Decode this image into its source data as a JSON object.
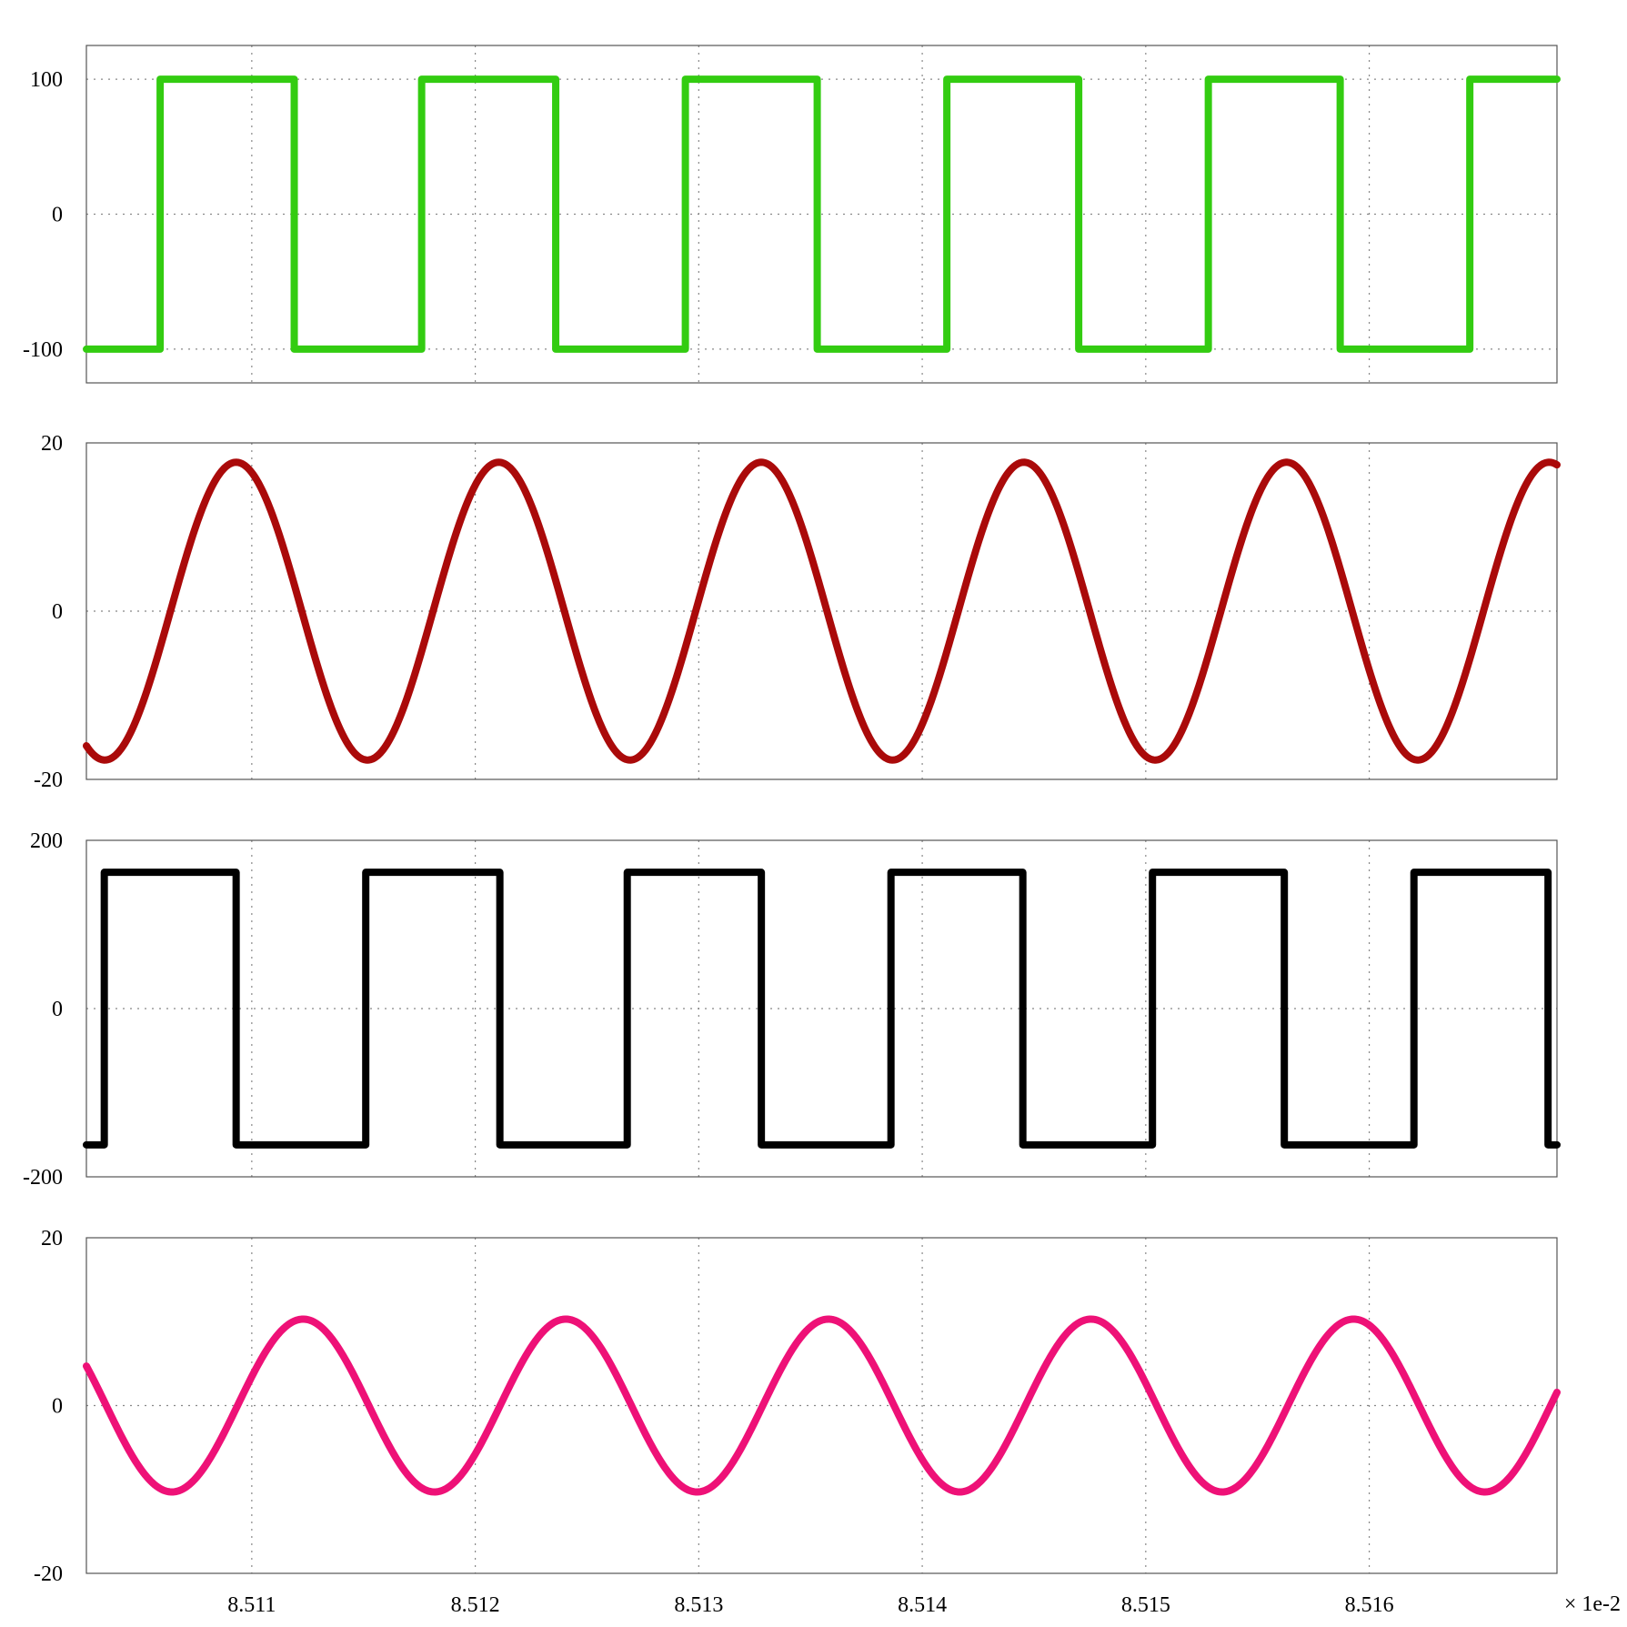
{
  "chart_data": [
    {
      "type": "line",
      "panel": 1,
      "color": "#33cc11",
      "ylim": [
        -125,
        125
      ],
      "yticks": [
        -100,
        0,
        100
      ],
      "ytick_labels": [
        "-100",
        "0",
        "100"
      ],
      "xlim": [
        8.51026,
        8.51684
      ],
      "grid": true,
      "series": [
        {
          "x": [
            8.51026,
            8.51059,
            8.51059,
            8.51119,
            8.51119,
            8.51176,
            8.51176,
            8.51236,
            8.51236,
            8.51294,
            8.51294,
            8.51353,
            8.51353,
            8.51411,
            8.51411,
            8.5147,
            8.5147,
            8.51528,
            8.51528,
            8.51587,
            8.51587,
            8.51645,
            8.51645,
            8.51684
          ],
          "y": [
            -100,
            -100,
            100,
            100,
            -100,
            -100,
            100,
            100,
            -100,
            -100,
            100,
            100,
            -100,
            -100,
            100,
            100,
            -100,
            -100,
            100,
            100,
            -100,
            -100,
            100,
            100
          ]
        }
      ]
    },
    {
      "type": "line",
      "panel": 2,
      "color": "#aa0a0a",
      "ylim": [
        -20,
        20
      ],
      "yticks": [
        -20,
        0,
        20
      ],
      "ytick_labels": [
        "-20",
        "0",
        "20"
      ],
      "xlim": [
        8.51026,
        8.51684
      ],
      "grid": true,
      "series": [
        {
          "amplitude": 17.7,
          "period": 0.001175,
          "peak_x": 8.51093,
          "offset": 0
        }
      ]
    },
    {
      "type": "line",
      "panel": 3,
      "color": "#000000",
      "ylim": [
        -200,
        200
      ],
      "yticks": [
        -200,
        0,
        200
      ],
      "ytick_labels": [
        "-200",
        "0",
        "200"
      ],
      "xlim": [
        8.51026,
        8.51684
      ],
      "grid": true,
      "series": [
        {
          "x": [
            8.51026,
            8.51034,
            8.51034,
            8.51093,
            8.51093,
            8.51151,
            8.51151,
            8.51211,
            8.51211,
            8.51268,
            8.51268,
            8.51328,
            8.51328,
            8.51386,
            8.51386,
            8.51445,
            8.51445,
            8.51503,
            8.51503,
            8.51562,
            8.51562,
            8.5162,
            8.5162,
            8.5168,
            8.5168,
            8.51684
          ],
          "y": [
            -162,
            -162,
            162,
            162,
            -162,
            -162,
            162,
            162,
            -162,
            -162,
            162,
            162,
            -162,
            -162,
            162,
            162,
            -162,
            -162,
            162,
            162,
            -162,
            -162,
            162,
            162,
            -162,
            -162
          ]
        }
      ]
    },
    {
      "type": "line",
      "panel": 4,
      "color": "#ee1177",
      "ylim": [
        -20,
        20
      ],
      "yticks": [
        -20,
        0,
        20
      ],
      "ytick_labels": [
        "-20",
        "0",
        "20"
      ],
      "xlim": [
        8.51026,
        8.51684
      ],
      "xticks": [
        8.511,
        8.512,
        8.513,
        8.514,
        8.515,
        8.516
      ],
      "xtick_labels": [
        "8.511",
        "8.512",
        "8.513",
        "8.514",
        "8.515",
        "8.516"
      ],
      "x_multiplier": "× 1e-2",
      "grid": true,
      "series": [
        {
          "amplitude": 10.3,
          "period": 0.001175,
          "peak_x": 8.51123,
          "offset": 0
        }
      ]
    }
  ]
}
